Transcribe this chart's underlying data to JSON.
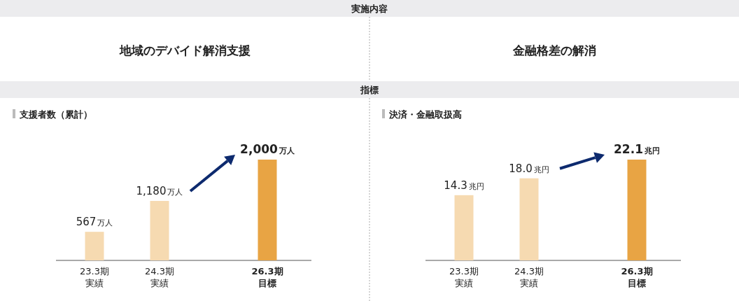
{
  "chart_data": [
    {
      "type": "other",
      "title": "実施内容",
      "annotations": [
        "指標"
      ]
    },
    {
      "type": "bar",
      "title": "地域のデバイド解消支援",
      "subtitle": "支援者数（累計）",
      "categories": [
        "23.3期実績",
        "24.3期実績",
        "26.3期目標"
      ],
      "values": [
        567,
        1180,
        2000
      ],
      "colors": [
        "#f6dab1",
        "#f6dab1",
        "#e8a444"
      ],
      "value_labels": [
        "567万人",
        "1,180万人",
        "2,000万人"
      ]
    },
    {
      "type": "bar",
      "title": "金融格差の解消",
      "subtitle": "決済・金融取扱高",
      "categories": [
        "23.3期実績",
        "24.3期実績",
        "26.3期目標"
      ],
      "values": [
        14.3,
        18.0,
        22.1
      ],
      "colors": [
        "#f6dab1",
        "#f6dab1",
        "#e8a444"
      ],
      "value_labels": [
        "14.3兆円",
        "18.0兆円",
        "22.1兆円"
      ]
    }
  ]
}
